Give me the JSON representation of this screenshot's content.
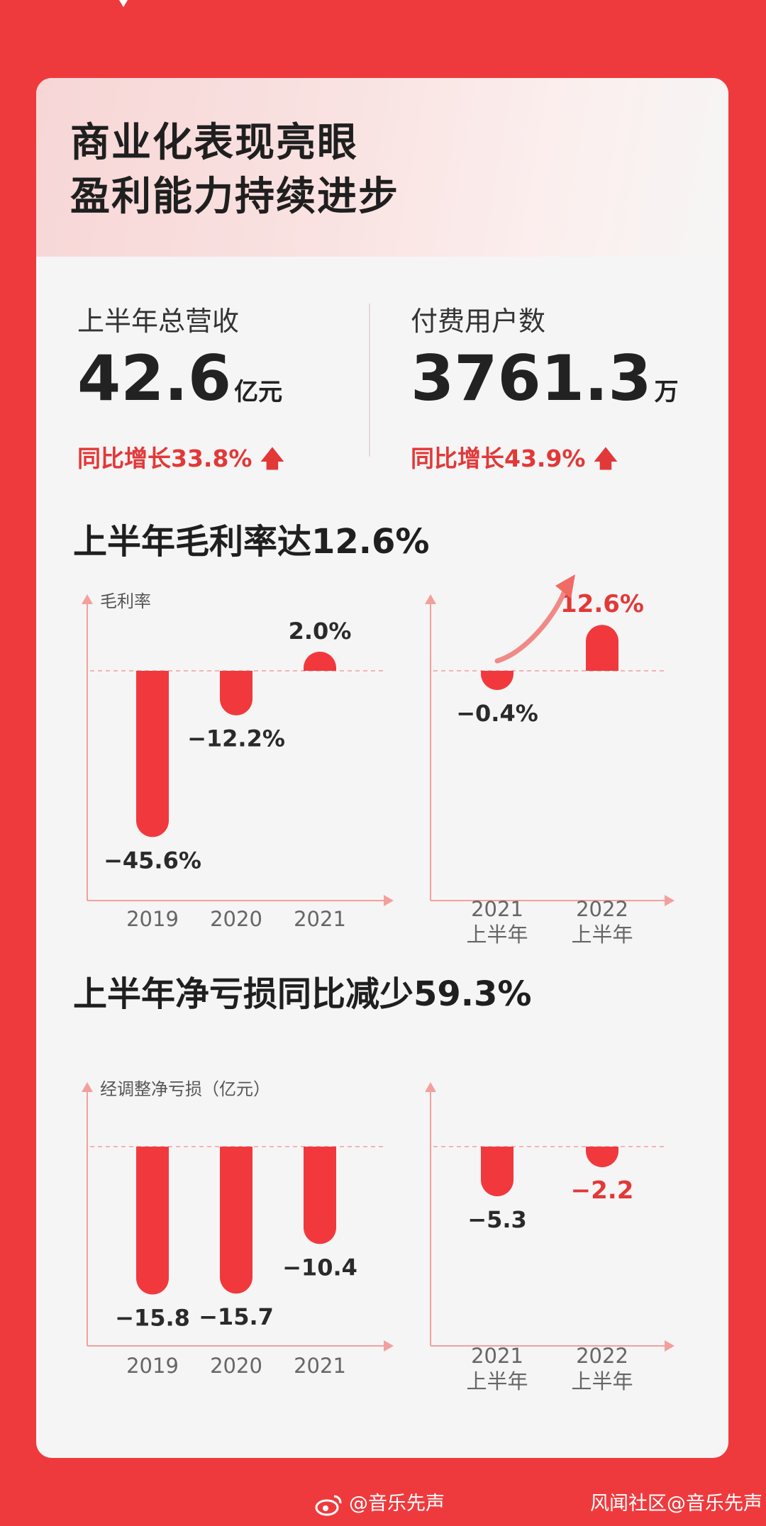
{
  "hero": {
    "title_line1": "商业化表现亮眼",
    "title_line2": "盈利能力持续进步"
  },
  "kpis": [
    {
      "label": "上半年总营收",
      "value": "42.6",
      "unit": "亿元",
      "growth": "同比增长33.8%"
    },
    {
      "label": "付费用户数",
      "value": "3761.3",
      "unit": "万",
      "growth": "同比增长43.9%"
    }
  ],
  "colors": {
    "accent": "#ef3a3d",
    "bar": "#f1393d",
    "highlight_text": "#e23838",
    "axis": "#f3a09c"
  },
  "section1_title": "上半年毛利率达12.6%",
  "section2_title": "上半年净亏损同比减少59.3%",
  "chart_data": [
    {
      "type": "bar",
      "ylabel": "毛利率",
      "categories": [
        "2019",
        "2020",
        "2021"
      ],
      "values": [
        -45.6,
        -12.2,
        2.0
      ],
      "labels": [
        "−45.6%",
        "−12.2%",
        "2.0%"
      ]
    },
    {
      "type": "bar",
      "categories": [
        "2021 上半年",
        "2022 上半年"
      ],
      "values": [
        -0.4,
        12.6
      ],
      "labels": [
        "−0.4%",
        "12.6%"
      ],
      "highlight": "12.6%"
    },
    {
      "type": "bar",
      "ylabel": "经调整净亏损（亿元）",
      "categories": [
        "2019",
        "2020",
        "2021"
      ],
      "values": [
        -15.8,
        -15.7,
        -10.4
      ],
      "labels": [
        "−15.8",
        "−15.7",
        "−10.4"
      ]
    },
    {
      "type": "bar",
      "categories": [
        "2021 上半年",
        "2022 上半年"
      ],
      "values": [
        -5.3,
        -2.2
      ],
      "labels": [
        "−5.3",
        "−2.2"
      ],
      "highlight": "−2.2"
    }
  ],
  "watermarks": {
    "left": "@音乐先声",
    "right": "风闻社区@音乐先声"
  }
}
